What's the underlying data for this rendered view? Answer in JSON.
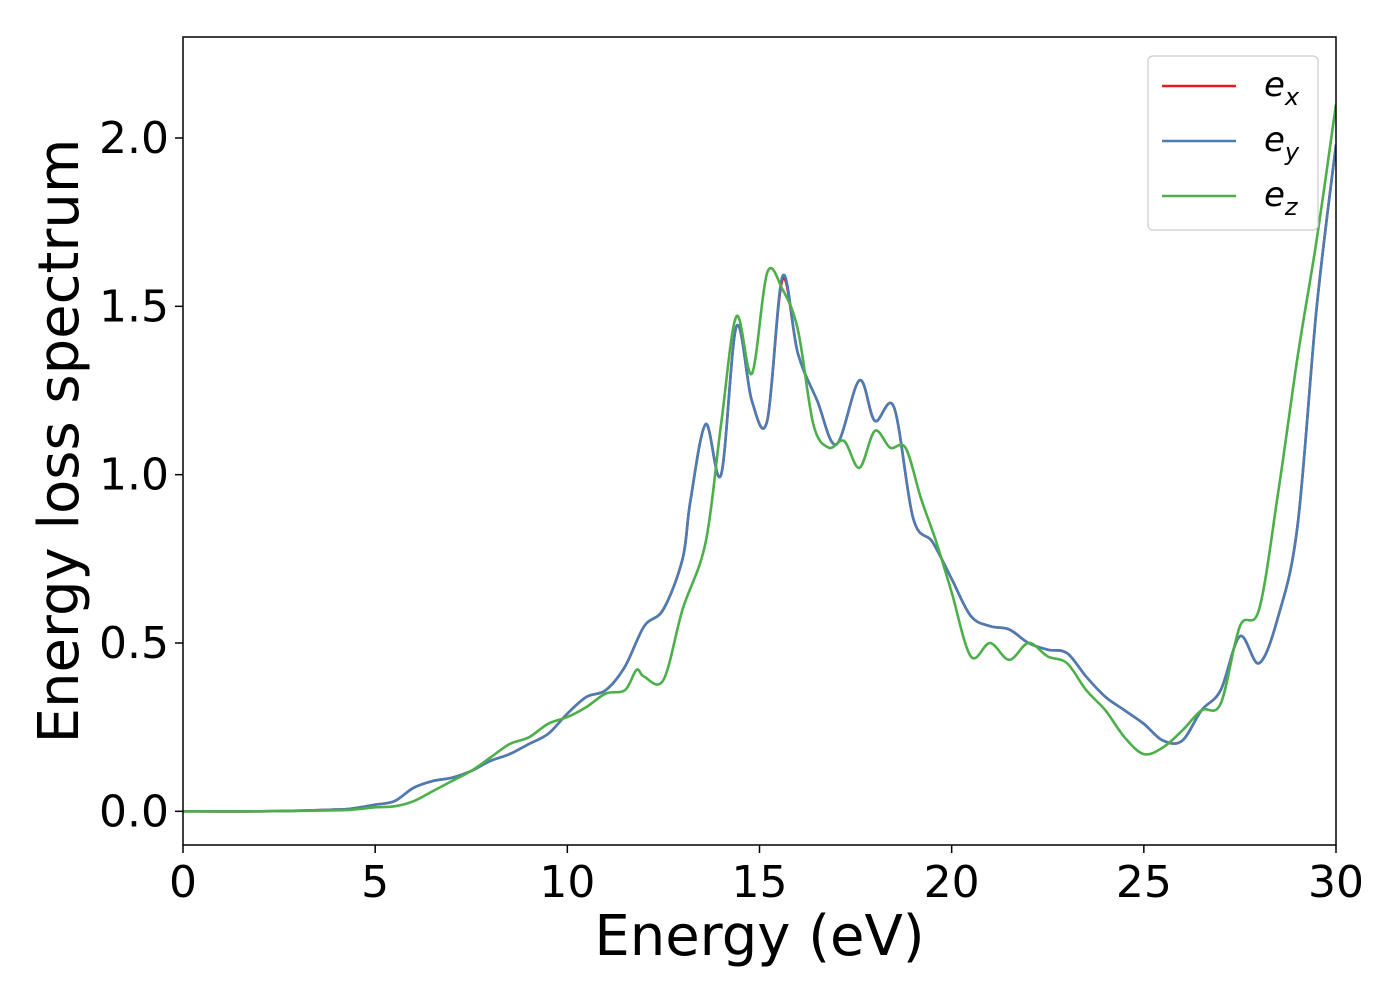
{
  "chart_data": {
    "type": "line",
    "title": "",
    "xlabel": "Energy (eV)",
    "ylabel": "Energy loss spectrum",
    "xlim": [
      0,
      30
    ],
    "ylim": [
      -0.1,
      2.3
    ],
    "xticks": [
      0,
      5,
      10,
      15,
      20,
      25,
      30
    ],
    "xtick_labels": [
      "0",
      "5",
      "10",
      "15",
      "20",
      "25",
      "30"
    ],
    "yticks": [
      0.0,
      0.5,
      1.0,
      1.5,
      2.0
    ],
    "ytick_labels": [
      "0.0",
      "0.5",
      "1.0",
      "1.5",
      "2.0"
    ],
    "grid": false,
    "legend_position": "top-right",
    "series": [
      {
        "name": "e_x",
        "legend_base": "e",
        "legend_sub": "x",
        "color": "#e41a1c",
        "x": [
          0,
          2,
          4,
          4.5,
          5,
          5.5,
          6,
          6.5,
          7,
          7.5,
          8,
          8.5,
          9,
          9.5,
          10,
          10.5,
          11,
          11.5,
          12,
          12.5,
          13,
          13.2,
          13.6,
          14,
          14.4,
          14.8,
          15.2,
          15.6,
          16,
          16.5,
          17,
          17.6,
          18,
          18.5,
          19,
          19.5,
          20,
          20.5,
          21,
          21.5,
          22,
          22.5,
          23,
          23.5,
          24,
          24.5,
          25,
          25.5,
          26,
          26.5,
          27,
          27.5,
          28,
          28.5,
          29,
          29.5,
          30
        ],
        "y": [
          0,
          0,
          0.005,
          0.01,
          0.02,
          0.03,
          0.07,
          0.09,
          0.1,
          0.12,
          0.15,
          0.17,
          0.2,
          0.23,
          0.29,
          0.34,
          0.36,
          0.43,
          0.55,
          0.6,
          0.75,
          0.92,
          1.15,
          1.0,
          1.44,
          1.22,
          1.16,
          1.58,
          1.36,
          1.22,
          1.09,
          1.28,
          1.16,
          1.2,
          0.87,
          0.8,
          0.69,
          0.58,
          0.55,
          0.54,
          0.5,
          0.48,
          0.47,
          0.4,
          0.34,
          0.3,
          0.26,
          0.21,
          0.21,
          0.3,
          0.36,
          0.52,
          0.44,
          0.58,
          0.85,
          1.5,
          1.98
        ]
      },
      {
        "name": "e_y",
        "legend_base": "e",
        "legend_sub": "y",
        "color": "#4a7db3",
        "x": [
          0,
          2,
          4,
          4.5,
          5,
          5.5,
          6,
          6.5,
          7,
          7.5,
          8,
          8.5,
          9,
          9.5,
          10,
          10.5,
          11,
          11.5,
          12,
          12.5,
          13,
          13.2,
          13.6,
          14,
          14.4,
          14.8,
          15.2,
          15.6,
          16,
          16.5,
          17,
          17.6,
          18,
          18.5,
          19,
          19.5,
          20,
          20.5,
          21,
          21.5,
          22,
          22.5,
          23,
          23.5,
          24,
          24.5,
          25,
          25.5,
          26,
          26.5,
          27,
          27.5,
          28,
          28.5,
          29,
          29.5,
          30
        ],
        "y": [
          0,
          0,
          0.005,
          0.01,
          0.02,
          0.03,
          0.07,
          0.09,
          0.1,
          0.12,
          0.15,
          0.17,
          0.2,
          0.23,
          0.29,
          0.34,
          0.36,
          0.43,
          0.55,
          0.6,
          0.75,
          0.92,
          1.15,
          1.0,
          1.44,
          1.22,
          1.16,
          1.59,
          1.36,
          1.22,
          1.09,
          1.28,
          1.16,
          1.2,
          0.87,
          0.8,
          0.69,
          0.58,
          0.55,
          0.54,
          0.5,
          0.48,
          0.47,
          0.4,
          0.34,
          0.3,
          0.26,
          0.21,
          0.21,
          0.3,
          0.36,
          0.52,
          0.44,
          0.58,
          0.85,
          1.5,
          1.98
        ]
      },
      {
        "name": "e_z",
        "legend_base": "e",
        "legend_sub": "z",
        "color": "#4daf4a",
        "x": [
          0,
          2,
          4,
          4.5,
          5,
          5.5,
          6,
          6.5,
          7,
          7.5,
          8,
          8.5,
          9,
          9.5,
          10,
          10.5,
          11,
          11.5,
          11.8,
          12,
          12.5,
          13,
          13.6,
          14,
          14.4,
          14.8,
          15.2,
          15.6,
          16,
          16.4,
          16.8,
          17.2,
          17.6,
          18,
          18.4,
          18.8,
          19.2,
          19.6,
          20,
          20.5,
          21,
          21.5,
          22,
          22.5,
          23,
          23.5,
          24,
          24.5,
          25,
          25.5,
          26,
          26.5,
          27,
          27.5,
          28,
          28.5,
          29,
          29.5,
          30
        ],
        "y": [
          0,
          0,
          0.003,
          0.006,
          0.012,
          0.015,
          0.03,
          0.06,
          0.09,
          0.12,
          0.16,
          0.2,
          0.22,
          0.26,
          0.28,
          0.31,
          0.35,
          0.36,
          0.42,
          0.4,
          0.39,
          0.6,
          0.8,
          1.15,
          1.47,
          1.3,
          1.6,
          1.55,
          1.43,
          1.15,
          1.08,
          1.1,
          1.02,
          1.13,
          1.08,
          1.08,
          0.93,
          0.8,
          0.65,
          0.46,
          0.5,
          0.45,
          0.5,
          0.46,
          0.44,
          0.36,
          0.3,
          0.22,
          0.17,
          0.19,
          0.24,
          0.3,
          0.32,
          0.55,
          0.6,
          0.95,
          1.35,
          1.7,
          2.1
        ]
      }
    ]
  }
}
